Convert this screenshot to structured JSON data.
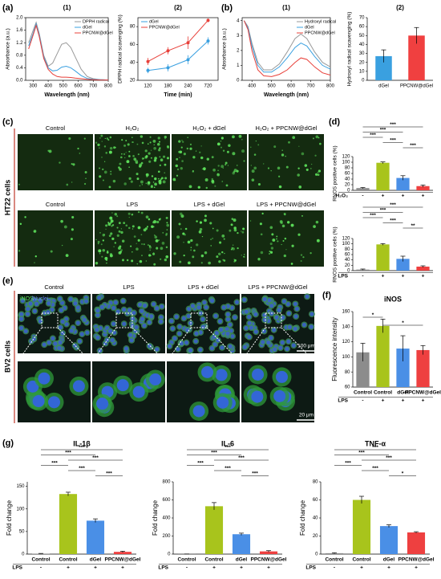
{
  "panels": {
    "a": "(a)",
    "b": "(b)",
    "c": "(c)",
    "d": "(d)",
    "e": "(e)",
    "f": "(f)",
    "g": "(g)"
  },
  "image_panels": {
    "c": {
      "row_label": "HT22 cells",
      "rows": [
        [
          "Control",
          "H₂O₂",
          "H₂O₂ + dGel",
          "H₂O₂ + PPCNW@dGel"
        ],
        [
          "Control",
          "LPS",
          "LPS + dGel",
          "LPS + PPCNW@dGel"
        ]
      ]
    },
    "e": {
      "row_label": "BV2 cells",
      "columns": [
        "Control",
        "LPS",
        "LPS + dGel",
        "LPS + PPCNW@dGel"
      ],
      "stain": [
        "iNOS",
        "/Nuclei"
      ],
      "scale_bars": [
        "100 μm",
        "20 μm"
      ]
    }
  },
  "chart_data": [
    {
      "type": "line",
      "title": "(1)",
      "x_label": "Wavelength (nm)",
      "y_label": "Absorbance (a.u.)",
      "x": [
        270,
        300,
        320,
        340,
        370,
        400,
        430,
        460,
        490,
        520,
        550,
        580,
        620,
        660,
        700,
        750,
        800
      ],
      "series": [
        {
          "name": "DPPH radical",
          "color": "#999999",
          "values": [
            1.2,
            1.6,
            1.85,
            1.5,
            0.8,
            0.45,
            0.55,
            0.85,
            1.15,
            1.2,
            1.05,
            0.75,
            0.35,
            0.12,
            0.05,
            0.02,
            0.01
          ]
        },
        {
          "name": "dGel",
          "color": "#3aa0e0",
          "values": [
            1.1,
            1.5,
            1.8,
            1.45,
            0.75,
            0.4,
            0.3,
            0.32,
            0.42,
            0.45,
            0.4,
            0.3,
            0.15,
            0.06,
            0.03,
            0.02,
            0.01
          ]
        },
        {
          "name": "PPCNW@dGel",
          "color": "#e8403a",
          "values": [
            1.0,
            1.45,
            1.75,
            1.4,
            0.7,
            0.35,
            0.2,
            0.12,
            0.1,
            0.1,
            0.09,
            0.07,
            0.05,
            0.03,
            0.02,
            0.01,
            0.01
          ]
        }
      ],
      "xlim": [
        250,
        800
      ],
      "xticks": [
        300,
        400,
        500,
        600,
        700,
        800
      ],
      "ylim": [
        0,
        2.0
      ],
      "yticks": [
        {
          "value": 0,
          "label": "0.0"
        },
        {
          "value": 0.4,
          "label": "0.4"
        },
        {
          "value": 0.8,
          "label": "0.8"
        },
        {
          "value": 1.2,
          "label": "1.2"
        },
        {
          "value": 1.6,
          "label": "1.6"
        },
        {
          "value": 2.0,
          "label": "2.0"
        }
      ],
      "legend": "upper right"
    },
    {
      "type": "line",
      "title": "(2)",
      "x_label": "Time (min)",
      "y_label": "DPPH radical scavenging (%)",
      "categories": [
        "120",
        "180",
        "240",
        "720"
      ],
      "series": [
        {
          "name": "dGel",
          "color": "#3aa0e0",
          "values": [
            31,
            34,
            43,
            64
          ],
          "errors": [
            3,
            4,
            5,
            4
          ]
        },
        {
          "name": "PPCNW@dGel",
          "color": "#e8403a",
          "values": [
            41,
            53,
            62,
            87
          ],
          "errors": [
            4,
            4,
            7,
            2
          ]
        }
      ],
      "ylim": [
        20,
        90
      ],
      "yticks": [
        20,
        40,
        60,
        80
      ],
      "legend": "upper left"
    },
    {
      "type": "line",
      "title": "(1)",
      "x_label": "Wavelength (nm)",
      "y_label": "Absorbance (a.u.)",
      "x": [
        360,
        380,
        400,
        430,
        460,
        500,
        540,
        580,
        620,
        650,
        680,
        720,
        760,
        800
      ],
      "series": [
        {
          "name": "Hydroxyl radical",
          "color": "#999999",
          "values": [
            4.0,
            3.6,
            2.5,
            1.2,
            0.7,
            0.7,
            1.1,
            1.9,
            2.8,
            3.1,
            2.8,
            1.9,
            1.2,
            0.9
          ]
        },
        {
          "name": "dGel",
          "color": "#3aa0e0",
          "values": [
            4.0,
            3.5,
            2.3,
            1.0,
            0.55,
            0.55,
            0.9,
            1.5,
            2.2,
            2.5,
            2.3,
            1.6,
            1.0,
            0.75
          ]
        },
        {
          "name": "PPCNW@dGel",
          "color": "#e8403a",
          "values": [
            4.0,
            3.4,
            2.0,
            0.7,
            0.3,
            0.25,
            0.4,
            0.7,
            1.2,
            1.5,
            1.4,
            0.9,
            0.5,
            0.35
          ]
        }
      ],
      "xlim": [
        350,
        800
      ],
      "xticks": [
        400,
        500,
        600,
        700,
        800
      ],
      "ylim": [
        0,
        4.2
      ],
      "yticks": [
        0,
        1,
        2,
        3,
        4
      ],
      "legend": "upper right"
    },
    {
      "type": "bar",
      "title": "(2)",
      "y_label": "Hydroxyl radical scavenging (%)",
      "categories": [
        "dGel",
        "PPCNW@dGel"
      ],
      "values": [
        27,
        50
      ],
      "errors": [
        7,
        9
      ],
      "colors": [
        "#3aa0e0",
        "#f04040"
      ],
      "ylim": [
        0,
        70
      ],
      "yticks": [
        0,
        10,
        20,
        30,
        40,
        50,
        60,
        70
      ]
    },
    {
      "type": "bar",
      "y_label": "RNOS positive cells (%)",
      "categories": [
        null,
        null,
        null,
        null
      ],
      "values": [
        8,
        98,
        44,
        15
      ],
      "errors": [
        2,
        3,
        8,
        4
      ],
      "colors": [
        "#8c8c8c",
        "#a8c41c",
        "#4a8fe6",
        "#ee4040"
      ],
      "ylim": [
        0,
        120
      ],
      "yticks": [
        0,
        20,
        40,
        60,
        80,
        100,
        120
      ],
      "condition": {
        "label": "H₂O₂",
        "values": [
          "-",
          "+",
          "+",
          "+"
        ]
      },
      "annotations": [
        "***",
        "***",
        "***",
        "***",
        "***"
      ]
    },
    {
      "type": "bar",
      "y_label": "RNOS positive cells (%)",
      "categories": [
        null,
        null,
        null,
        null
      ],
      "values": [
        4,
        98,
        44,
        15
      ],
      "errors": [
        2,
        3,
        10,
        3
      ],
      "colors": [
        "#8c8c8c",
        "#a8c41c",
        "#4a8fe6",
        "#ee4040"
      ],
      "ylim": [
        0,
        120
      ],
      "yticks": [
        0,
        20,
        40,
        60,
        80,
        100,
        120
      ],
      "condition": {
        "label": "LPS",
        "values": [
          "-",
          "+",
          "+",
          "+"
        ]
      },
      "annotations": [
        "***",
        "***",
        "***",
        "***",
        "**"
      ]
    },
    {
      "type": "bar",
      "title": "iNOS",
      "y_label": "Fluorescence intensity",
      "categories": [
        "Control",
        "Control",
        "dGel",
        "PPCNW@dGel"
      ],
      "values": [
        106,
        141,
        111,
        109
      ],
      "errors": [
        12,
        9,
        17,
        6
      ],
      "colors": [
        "#8c8c8c",
        "#a8c41c",
        "#4a8fe6",
        "#ee4040"
      ],
      "ylim": [
        60,
        160
      ],
      "yticks": [
        60,
        80,
        100,
        120,
        140,
        160
      ],
      "condition": {
        "label": "LPS",
        "values": [
          "-",
          "+",
          "+",
          "+"
        ]
      },
      "annotations": [
        "*",
        "*"
      ]
    },
    {
      "type": "bar",
      "title": "IL-1β",
      "y_label": "Fold change",
      "categories": [
        "Control",
        "Control",
        "dGel",
        "PPCNW@dGel"
      ],
      "values": [
        1,
        133,
        74,
        5
      ],
      "errors": [
        0.5,
        4,
        4,
        1.5
      ],
      "colors": [
        "#8c8c8c",
        "#a8c41c",
        "#4a8fe6",
        "#ee4040"
      ],
      "ylim": [
        0,
        160
      ],
      "yticks": [
        0,
        50,
        100,
        150
      ],
      "condition": {
        "label": "LPS",
        "values": [
          "-",
          "+",
          "+",
          "+"
        ]
      },
      "annotations": [
        "***",
        "***",
        "***",
        "***",
        "***",
        "***"
      ]
    },
    {
      "type": "bar",
      "title": "IL-6",
      "y_label": "Fold change",
      "categories": [
        "Control",
        "Control",
        "dGel",
        "PPCNW@dGel"
      ],
      "values": [
        1,
        530,
        220,
        30
      ],
      "errors": [
        0.5,
        40,
        12,
        8
      ],
      "colors": [
        "#8c8c8c",
        "#a8c41c",
        "#4a8fe6",
        "#ee4040"
      ],
      "ylim": [
        0,
        800
      ],
      "yticks": [
        0,
        200,
        400,
        600,
        800
      ],
      "condition": {
        "label": "LPS",
        "values": [
          "-",
          "+",
          "+",
          "+"
        ]
      },
      "annotations": [
        "***",
        "***",
        "***",
        "***",
        "***",
        "***"
      ]
    },
    {
      "type": "bar",
      "title": "TNF-α",
      "y_label": "Fold change",
      "categories": [
        "Control",
        "Control",
        "dGel",
        "PPCNW@dGel"
      ],
      "values": [
        1,
        60,
        31,
        24
      ],
      "errors": [
        0.5,
        4,
        1.5,
        0.8
      ],
      "colors": [
        "#8c8c8c",
        "#a8c41c",
        "#4a8fe6",
        "#ee4040"
      ],
      "ylim": [
        0,
        80
      ],
      "yticks": [
        0,
        20,
        40,
        60,
        80
      ],
      "condition": {
        "label": "LPS",
        "values": [
          "-",
          "+",
          "+",
          "+"
        ]
      },
      "annotations": [
        "***",
        "***",
        "***",
        "***",
        "***",
        "*"
      ]
    }
  ]
}
